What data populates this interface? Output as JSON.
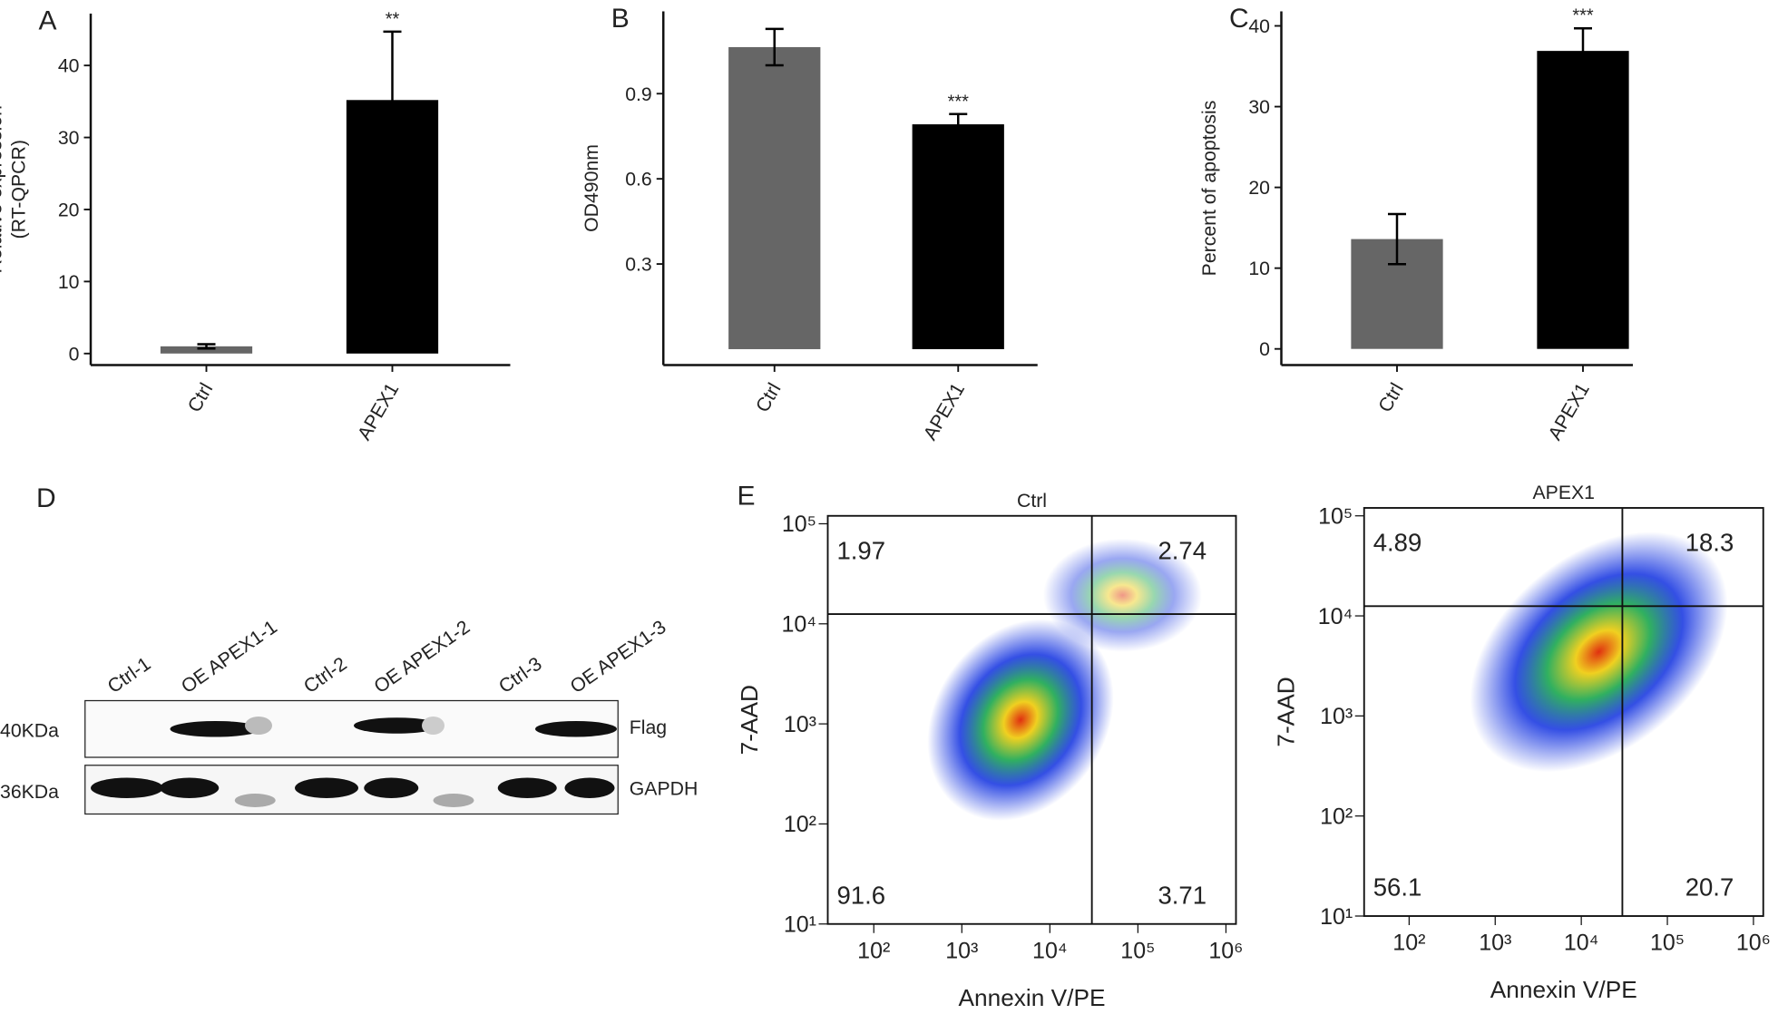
{
  "chart_data": [
    {
      "type": "bar",
      "panel": "A",
      "ylabel": [
        "Relative expression",
        "(RT-QPCR)"
      ],
      "categories": [
        "Ctrl",
        "APEX1"
      ],
      "values": [
        1,
        35.2
      ],
      "errors": [
        0.3,
        9.5
      ],
      "colors": [
        "#666666",
        "#000000"
      ],
      "significance": [
        null,
        "**"
      ],
      "ylim": [
        -1.6,
        47.2
      ],
      "yticks": [
        0,
        10,
        20,
        30,
        40
      ]
    },
    {
      "type": "bar",
      "panel": "B",
      "ylabel": [
        "OD490nm"
      ],
      "categories": [
        "Ctrl",
        "APEX1"
      ],
      "values": [
        1.064,
        0.792
      ],
      "errors": [
        0.064,
        0.036
      ],
      "colors": [
        "#666666",
        "#000000"
      ],
      "significance": [
        null,
        "***"
      ],
      "ylim": [
        -0.056,
        1.19
      ],
      "yticks": [
        0.3,
        0.6,
        0.9
      ]
    },
    {
      "type": "bar",
      "panel": "C",
      "ylabel": [
        "Percent of apoptosis"
      ],
      "categories": [
        "Ctrl",
        "APEX1"
      ],
      "values": [
        13.6,
        36.9
      ],
      "errors": [
        3.1,
        2.8
      ],
      "colors": [
        "#666666",
        "#000000"
      ],
      "significance": [
        null,
        "***"
      ],
      "ylim": [
        -2,
        41.8
      ],
      "yticks": [
        0,
        10,
        20,
        30,
        40
      ]
    },
    {
      "type": "flow",
      "panel": "E",
      "title": "Ctrl",
      "xlabel": "Annexin V/PE",
      "ylabel": "7-AAD",
      "log_scale": true,
      "xlim": [
        30,
        1300000
      ],
      "ylim": [
        10,
        120000
      ],
      "xticks": [
        {
          "value": 100,
          "label": "10²"
        },
        {
          "value": 1000,
          "label": "10³"
        },
        {
          "value": 10000,
          "label": "10⁴"
        },
        {
          "value": 100000,
          "label": "10⁵"
        },
        {
          "value": 1000000,
          "label": "10⁶"
        }
      ],
      "yticks": [
        {
          "value": 10,
          "label": "10¹"
        },
        {
          "value": 100,
          "label": "10²"
        },
        {
          "value": 1000,
          "label": "10³"
        },
        {
          "value": 10000,
          "label": "10⁴"
        },
        {
          "value": 100000,
          "label": "10⁵"
        }
      ],
      "gates": {
        "x": 30000,
        "y": 12500
      },
      "quadrants": {
        "upper_left": 1.97,
        "upper_right": 2.74,
        "lower_left": 91.6,
        "lower_right": 3.71
      }
    },
    {
      "type": "flow",
      "title": "APEX1",
      "xlabel": "Annexin V/PE",
      "ylabel": "7-AAD",
      "log_scale": true,
      "xlim": [
        30,
        1300000
      ],
      "ylim": [
        10,
        120000
      ],
      "xticks": [
        {
          "value": 100,
          "label": "10²"
        },
        {
          "value": 1000,
          "label": "10³"
        },
        {
          "value": 10000,
          "label": "10⁴"
        },
        {
          "value": 100000,
          "label": "10⁵"
        },
        {
          "value": 1000000,
          "label": "10⁶"
        }
      ],
      "yticks": [
        {
          "value": 10,
          "label": "10¹"
        },
        {
          "value": 100,
          "label": "10²"
        },
        {
          "value": 1000,
          "label": "10³"
        },
        {
          "value": 10000,
          "label": "10⁴"
        },
        {
          "value": 100000,
          "label": "10⁵"
        }
      ],
      "gates": {
        "x": 30000,
        "y": 12500
      },
      "quadrants": {
        "upper_left": 4.89,
        "upper_right": 18.3,
        "lower_left": 56.1,
        "lower_right": 20.7
      }
    }
  ],
  "western_blot": {
    "panel": "D",
    "lanes": [
      "Ctrl-1",
      "OE APEX1-1",
      "Ctrl-2",
      "OE APEX1-2",
      "Ctrl-3",
      "OE APEX1-3"
    ],
    "rows": [
      {
        "size": "40KDa",
        "protein": "Flag"
      },
      {
        "size": "36KDa",
        "protein": "GAPDH"
      }
    ]
  }
}
